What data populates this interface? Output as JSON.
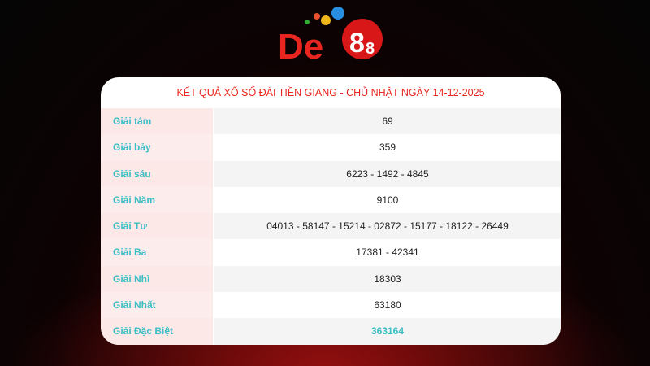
{
  "logo": {
    "text": "De88",
    "colors": {
      "red": "#e8261f"
    }
  },
  "title": "KẾT QUẢ XỔ SỐ ĐÀI TIỀN GIANG - CHỦ NHẬT NGÀY 14-12-2025",
  "rows": [
    {
      "label": "Giải tám",
      "value": "69"
    },
    {
      "label": "Giải bảy",
      "value": "359"
    },
    {
      "label": "Giải sáu",
      "value": "6223 - 1492 - 4845"
    },
    {
      "label": "Giải Năm",
      "value": "9100"
    },
    {
      "label": "Giải Tư",
      "value": "04013 - 58147 - 15214 - 02872 - 15177 - 18122 - 26449"
    },
    {
      "label": "Giải Ba",
      "value": "17381 - 42341"
    },
    {
      "label": "Giải Nhì",
      "value": "18303"
    },
    {
      "label": "Giải Nhất",
      "value": "63180"
    },
    {
      "label": "Giải Đặc Biệt",
      "value": "363164"
    }
  ],
  "colors": {
    "title": "#e8261f",
    "label": "#3cbfc4"
  }
}
